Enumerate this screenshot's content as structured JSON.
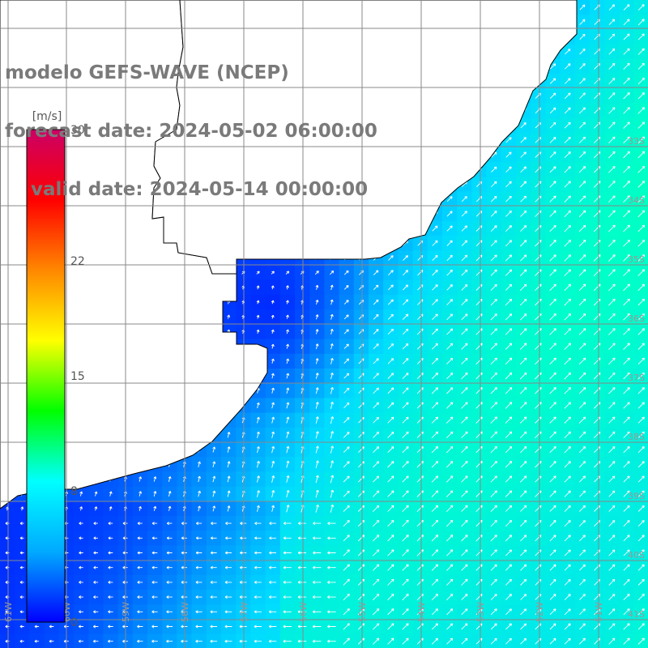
{
  "header": {
    "line1": "modelo GEFS-WAVE (NCEP)",
    "line2": "forecast date: 2024-05-02 06:00:00",
    "line3": "    valid date: 2024-05-14 00:00:00"
  },
  "colorbar": {
    "unit_label": "[m/s]",
    "tick_labels": [
      "30",
      "22",
      "15",
      "8",
      "0"
    ],
    "tick_values": [
      30,
      22,
      15,
      8,
      0
    ],
    "range": [
      0,
      30
    ],
    "colors": [
      "#0000ff",
      "#00aaff",
      "#00ffff",
      "#00ff00",
      "#ffff00",
      "#ff8800",
      "#ff0000",
      "#cc0066"
    ]
  },
  "map": {
    "lon_labels": [
      "61W",
      "60W",
      "59W",
      "58W",
      "57W",
      "56W",
      "55W",
      "54W",
      "53W",
      "52W",
      "51W"
    ],
    "lat_labels": [
      "33S",
      "34S",
      "35S",
      "36S",
      "37S",
      "38S",
      "39S",
      "40S",
      "41S"
    ],
    "land_color": "#ffffff",
    "grid_color": "#888888"
  }
}
